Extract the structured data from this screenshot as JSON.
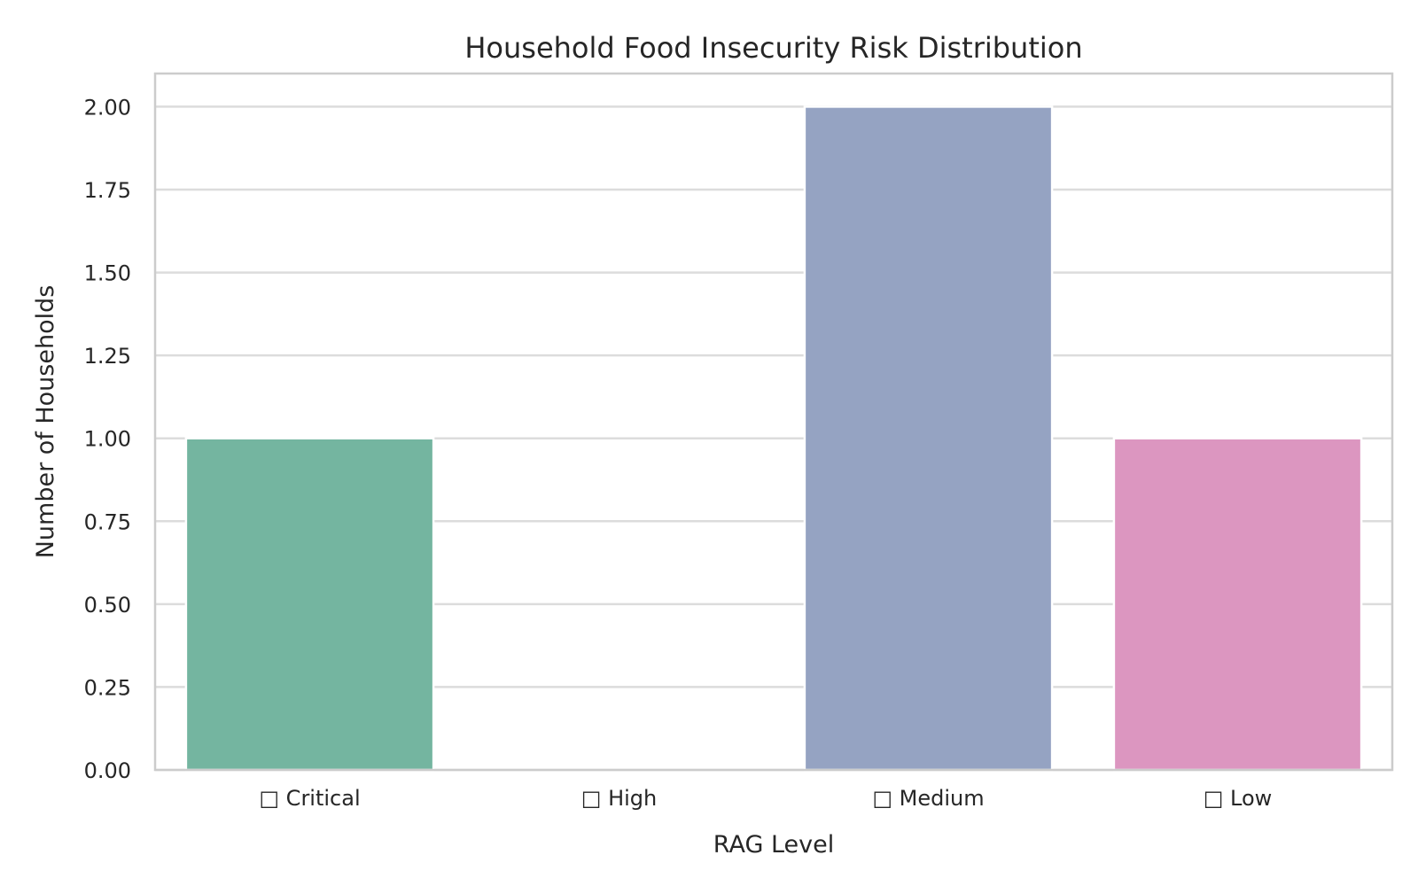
{
  "chart_data": {
    "type": "bar",
    "title": "Household Food Insecurity Risk Distribution",
    "xlabel": "RAG Level",
    "ylabel": "Number of Households",
    "categories": [
      "□ Critical",
      "□ High",
      "□ Medium",
      "□ Low"
    ],
    "values": [
      1,
      0,
      2,
      1
    ],
    "colors": [
      "#74b5a0",
      "#fc8d62",
      "#95a3c2",
      "#dc96c0"
    ],
    "ylim": [
      0,
      2.1
    ],
    "yticks": [
      "0.00",
      "0.25",
      "0.50",
      "0.75",
      "1.00",
      "1.25",
      "1.50",
      "1.75",
      "2.00"
    ],
    "grid": true,
    "grid_axis": "y",
    "legend": false
  }
}
